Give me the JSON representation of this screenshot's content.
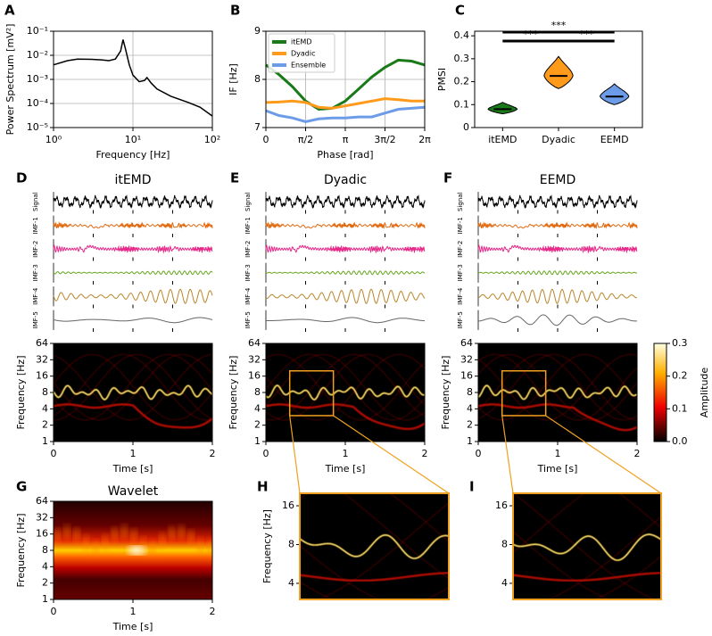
{
  "chart_data": [
    {
      "panel": "A",
      "type": "line",
      "xlabel": "Frequency [Hz]",
      "ylabel": "Power Spectrum [mV²]",
      "xscale": "log",
      "yscale": "log",
      "xlim": [
        1,
        100
      ],
      "ylim": [
        1e-05,
        0.1
      ],
      "xticks": [
        {
          "value": 1,
          "label": "10⁰"
        },
        {
          "value": 10,
          "label": "10¹"
        },
        {
          "value": 100,
          "label": "10²"
        }
      ],
      "yticks": [
        {
          "value": 1e-05,
          "label": "10⁻⁵"
        },
        {
          "value": 0.0001,
          "label": "10⁻⁴"
        },
        {
          "value": 0.001,
          "label": "10⁻³"
        },
        {
          "value": 0.01,
          "label": "10⁻²"
        },
        {
          "value": 0.1,
          "label": "10⁻¹"
        }
      ],
      "grid": true,
      "x": [
        1,
        1.5,
        2,
        3,
        4,
        5,
        6,
        7,
        7.5,
        8,
        9,
        10,
        12,
        14,
        15,
        17,
        20,
        30,
        50,
        70,
        100
      ],
      "series": [
        {
          "color": "#000000",
          "values": [
            0.004,
            0.006,
            0.007,
            0.0068,
            0.0065,
            0.006,
            0.007,
            0.015,
            0.045,
            0.02,
            0.004,
            0.0015,
            0.0008,
            0.0009,
            0.0012,
            0.0007,
            0.0004,
            0.0002,
            0.00011,
            7e-05,
            3e-05
          ]
        }
      ]
    },
    {
      "panel": "B",
      "type": "line",
      "xlabel": "Phase [rad]",
      "ylabel": "IF [Hz]",
      "xlim": [
        0,
        6.2832
      ],
      "ylim": [
        7,
        9
      ],
      "xticks": [
        0,
        {
          "value": 1.5708,
          "label": "π/2"
        },
        {
          "value": 3.1416,
          "label": "π"
        },
        {
          "value": 4.7124,
          "label": "3π/2"
        },
        {
          "value": 6.2832,
          "label": "2π"
        }
      ],
      "yticks": [
        7,
        8,
        9
      ],
      "grid": true,
      "legend": "upper left",
      "x": [
        0,
        0.52,
        1.05,
        1.57,
        2.09,
        2.62,
        3.14,
        3.67,
        4.19,
        4.71,
        5.24,
        5.76,
        6.28
      ],
      "series": [
        {
          "name": "itEMD",
          "color": "#1a7a1a",
          "values": [
            8.3,
            8.1,
            7.85,
            7.55,
            7.38,
            7.4,
            7.55,
            7.8,
            8.05,
            8.25,
            8.4,
            8.38,
            8.3
          ]
        },
        {
          "name": "Dyadic",
          "color": "#ff9a1a",
          "values": [
            7.52,
            7.53,
            7.55,
            7.52,
            7.42,
            7.4,
            7.45,
            7.5,
            7.55,
            7.6,
            7.58,
            7.55,
            7.55
          ]
        },
        {
          "name": "Ensemble",
          "color": "#6c9be8",
          "values": [
            7.35,
            7.25,
            7.2,
            7.12,
            7.18,
            7.2,
            7.2,
            7.22,
            7.22,
            7.3,
            7.38,
            7.4,
            7.42
          ]
        }
      ]
    },
    {
      "panel": "C",
      "type": "violin",
      "ylabel": "PMSI",
      "ylim": [
        0,
        0.42
      ],
      "yticks": [
        0.0,
        {
          "value": 0.1,
          "label": "0.1"
        },
        {
          "value": 0.2,
          "label": "0.2"
        },
        {
          "value": 0.3,
          "label": "0.3"
        },
        {
          "value": 0.4,
          "label": "0.4"
        }
      ],
      "categories": [
        "itEMD",
        "Dyadic",
        "EEMD"
      ],
      "colors": [
        "#1a7a1a",
        "#ff9a1a",
        "#6c9be8"
      ],
      "values": [
        0.08,
        0.225,
        0.135
      ],
      "lows": [
        0.06,
        0.17,
        0.1
      ],
      "highs": [
        0.11,
        0.31,
        0.19
      ],
      "annotations": [
        "***",
        "***",
        "***"
      ]
    },
    {
      "panel": "D",
      "type": "heatmap",
      "title": "itEMD",
      "channels": [
        "Signal",
        "IMF-1",
        "IMF-2",
        "IMF-3",
        "IMF-4",
        "IMF-5"
      ],
      "channel_colors": [
        "#000000",
        "#e06a10",
        "#e7298a",
        "#66a61e",
        "#b8862b",
        "#666666"
      ],
      "xlabel": "Time [s]",
      "ylabel": "Frequency [Hz]",
      "yscale": "log",
      "xlim": [
        0,
        2
      ],
      "xticks": [
        0,
        1,
        2
      ],
      "ylim": [
        1,
        64
      ],
      "yticks": [
        1,
        2,
        4,
        8,
        16,
        32,
        64
      ]
    },
    {
      "panel": "E",
      "type": "heatmap",
      "title": "Dyadic",
      "channels": [
        "Signal",
        "IMF-1",
        "IMF-2",
        "IMF-3",
        "IMF-4",
        "IMF-5"
      ],
      "channel_colors": [
        "#000000",
        "#e06a10",
        "#e7298a",
        "#66a61e",
        "#b8862b",
        "#666666"
      ],
      "xlabel": "Time [s]",
      "ylabel": "Frequency [Hz]",
      "yscale": "log",
      "xlim": [
        0,
        2
      ],
      "xticks": [
        0,
        1,
        2
      ],
      "ylim": [
        1,
        64
      ],
      "yticks": [
        1,
        2,
        4,
        8,
        16,
        32,
        64
      ]
    },
    {
      "panel": "F",
      "type": "heatmap",
      "title": "EEMD",
      "channels": [
        "Signal",
        "IMF-1",
        "IMF-2",
        "IMF-3",
        "IMF-4",
        "IMF-5"
      ],
      "channel_colors": [
        "#000000",
        "#e06a10",
        "#e7298a",
        "#66a61e",
        "#b8862b",
        "#666666"
      ],
      "xlabel": "Time [s]",
      "ylabel": "Frequency [Hz]",
      "yscale": "log",
      "xlim": [
        0,
        2
      ],
      "xticks": [
        0,
        1,
        2
      ],
      "ylim": [
        1,
        64
      ],
      "yticks": [
        1,
        2,
        4,
        8,
        16,
        32,
        64
      ],
      "colorbar": {
        "label": "Amplitude",
        "lim": [
          0,
          0.3
        ],
        "ticks": [
          {
            "value": 0,
            "label": "0.0"
          },
          0.1,
          0.2,
          0.3
        ]
      }
    },
    {
      "panel": "G",
      "type": "heatmap",
      "title": "Wavelet",
      "xlabel": "Time [s]",
      "ylabel": "Frequency [Hz]",
      "yscale": "log",
      "xlim": [
        0,
        2
      ],
      "xticks": [
        0,
        1,
        2
      ],
      "ylim": [
        1,
        64
      ],
      "yticks": [
        1,
        2,
        4,
        8,
        16,
        32,
        64
      ]
    },
    {
      "panel": "H",
      "type": "heatmap",
      "ylabel": "Frequency [Hz]",
      "yscale": "log",
      "xlim": [
        0.3,
        0.85
      ],
      "ylim": [
        3,
        20
      ],
      "yticks": [
        4,
        8,
        16
      ]
    },
    {
      "panel": "I",
      "type": "heatmap",
      "yscale": "log",
      "xlim": [
        0.3,
        0.85
      ],
      "ylim": [
        3,
        20
      ],
      "yticks": [
        4,
        8,
        16
      ]
    }
  ]
}
